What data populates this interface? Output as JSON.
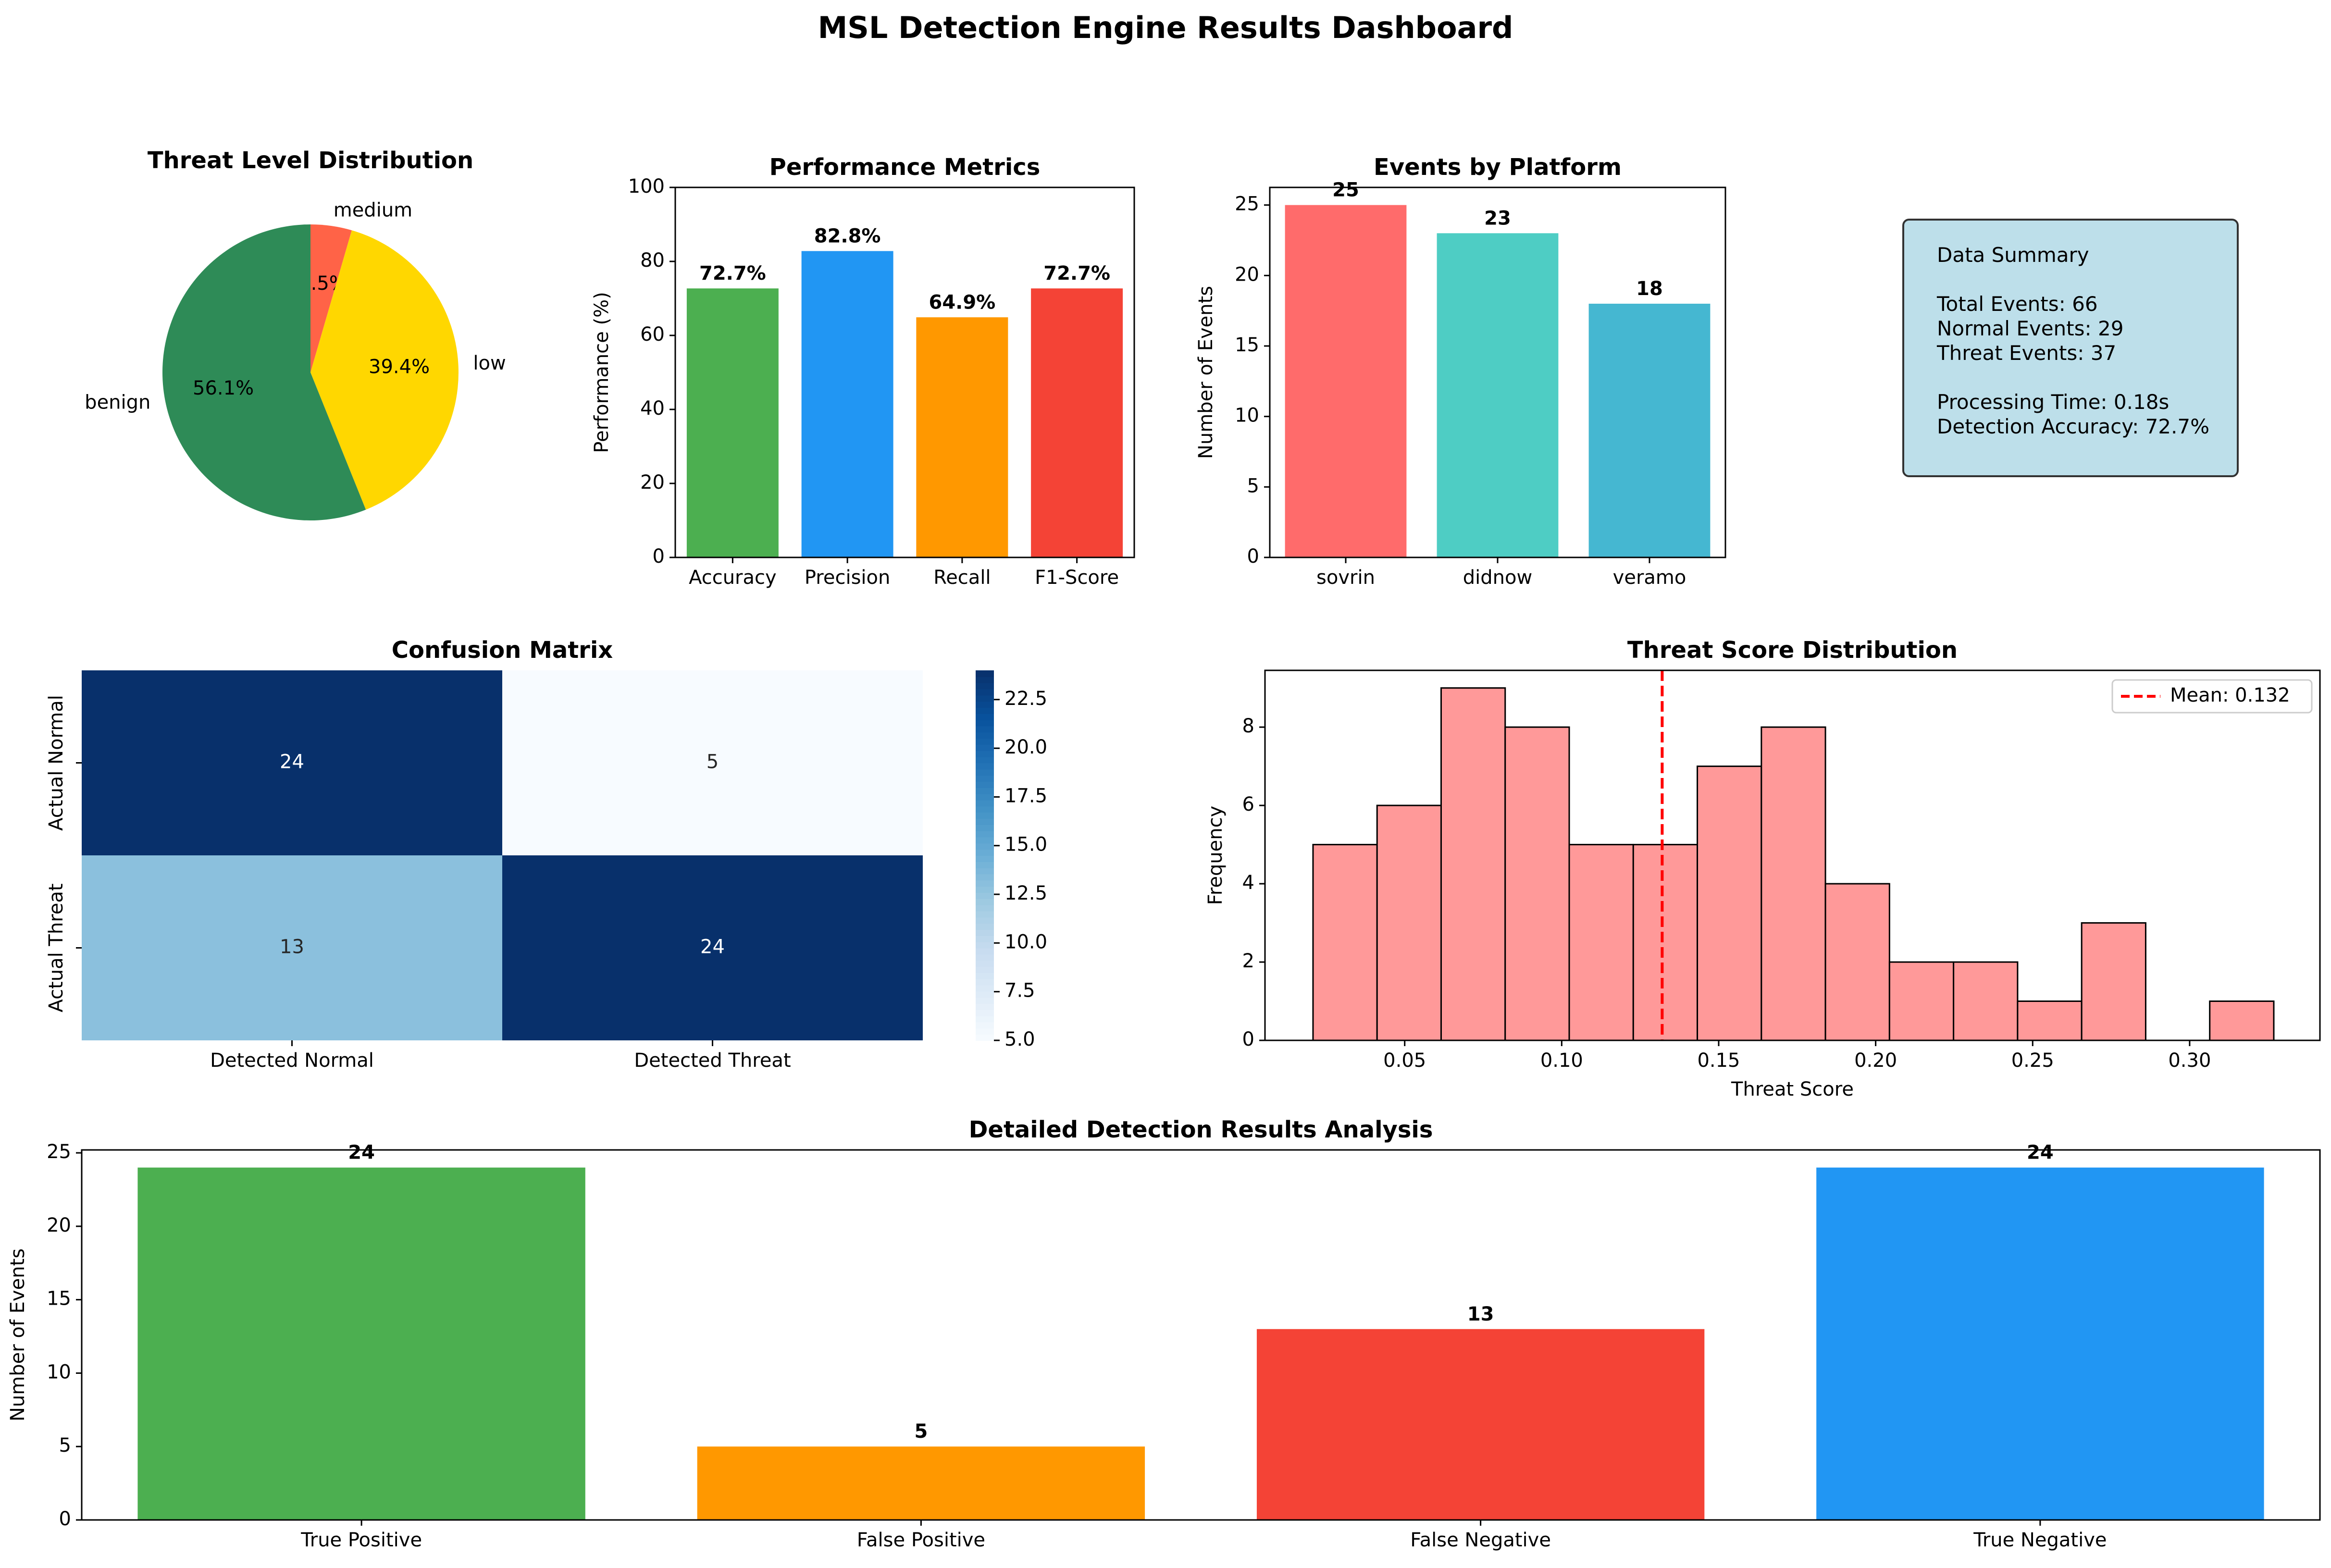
{
  "title": "MSL Detection Engine Results Dashboard",
  "chart_data": [
    {
      "id": "threat_level",
      "type": "pie",
      "title": "Threat Level Distribution",
      "slices": [
        {
          "label": "medium",
          "pct_label": "4.5%",
          "value": 4.5,
          "color": "#FF6347"
        },
        {
          "label": "low",
          "pct_label": "39.4%",
          "value": 39.4,
          "color": "#FFD700"
        },
        {
          "label": "benign",
          "pct_label": "56.1%",
          "value": 56.1,
          "color": "#2E8B57"
        }
      ]
    },
    {
      "id": "performance",
      "type": "bar",
      "title": "Performance Metrics",
      "ylabel": "Performance (%)",
      "ylim": [
        0,
        100
      ],
      "yticks": [
        0,
        20,
        40,
        60,
        80,
        100
      ],
      "categories": [
        "Accuracy",
        "Precision",
        "Recall",
        "F1-Score"
      ],
      "values": [
        72.7,
        82.8,
        64.9,
        72.7
      ],
      "value_labels": [
        "72.7%",
        "82.8%",
        "64.9%",
        "72.7%"
      ],
      "colors": [
        "#4CAF50",
        "#2196F3",
        "#FF9800",
        "#F44336"
      ]
    },
    {
      "id": "platform",
      "type": "bar",
      "title": "Events by Platform",
      "ylabel": "Number of Events",
      "ylim": [
        0,
        26.25
      ],
      "yticks": [
        0,
        5,
        10,
        15,
        20,
        25
      ],
      "categories": [
        "sovrin",
        "didnow",
        "veramo"
      ],
      "values": [
        25,
        23,
        18
      ],
      "value_labels": [
        "25",
        "23",
        "18"
      ],
      "colors": [
        "#FF6B6B",
        "#4ECDC4",
        "#45B7D1"
      ]
    },
    {
      "id": "confusion",
      "type": "heatmap",
      "title": "Confusion Matrix",
      "row_labels": [
        "Actual Normal",
        "Actual Threat"
      ],
      "col_labels": [
        "Detected Normal",
        "Detected Threat"
      ],
      "matrix": [
        [
          24,
          5
        ],
        [
          13,
          24
        ]
      ],
      "colorbar_range": [
        5,
        24
      ],
      "colorbar_ticks": [
        "5.0",
        "7.5",
        "10.0",
        "12.5",
        "15.0",
        "17.5",
        "20.0",
        "22.5"
      ]
    },
    {
      "id": "threat_score",
      "type": "bar",
      "subtype": "histogram",
      "title": "Threat Score Distribution",
      "xlabel": "Threat Score",
      "ylabel": "Frequency",
      "xlim": [
        0.0055,
        0.3415
      ],
      "ylim": [
        0,
        9.45
      ],
      "xticks": [
        "0.05",
        "0.10",
        "0.15",
        "0.20",
        "0.25",
        "0.30"
      ],
      "yticks": [
        0,
        2,
        4,
        6,
        8
      ],
      "bin_edges": [
        0.0208,
        0.0412,
        0.0616,
        0.082,
        0.1024,
        0.1228,
        0.1432,
        0.1636,
        0.184,
        0.2044,
        0.2248,
        0.2452,
        0.2656,
        0.286,
        0.3064,
        0.3268
      ],
      "counts": [
        5,
        6,
        9,
        8,
        5,
        5,
        7,
        8,
        4,
        2,
        2,
        1,
        3,
        0,
        1
      ],
      "mean": 0.132,
      "legend": "Mean: 0.132",
      "color": "#FF9999"
    },
    {
      "id": "detailed",
      "type": "bar",
      "title": "Detailed Detection Results Analysis",
      "ylabel": "Number of Events",
      "ylim": [
        0,
        25.2
      ],
      "yticks": [
        0,
        5,
        10,
        15,
        20,
        25
      ],
      "categories": [
        "True Positive",
        "False Positive",
        "False Negative",
        "True Negative"
      ],
      "values": [
        24,
        5,
        13,
        24
      ],
      "value_labels": [
        "24",
        "5",
        "13",
        "24"
      ],
      "colors": [
        "#4CAF50",
        "#FF9800",
        "#F44336",
        "#2196F3"
      ]
    }
  ],
  "summary": {
    "heading": "Data Summary",
    "lines": [
      "Total Events: 66",
      "Normal Events: 29",
      "Threat Events: 37",
      "Processing Time: 0.18s",
      "Detection Accuracy: 72.7%"
    ]
  }
}
